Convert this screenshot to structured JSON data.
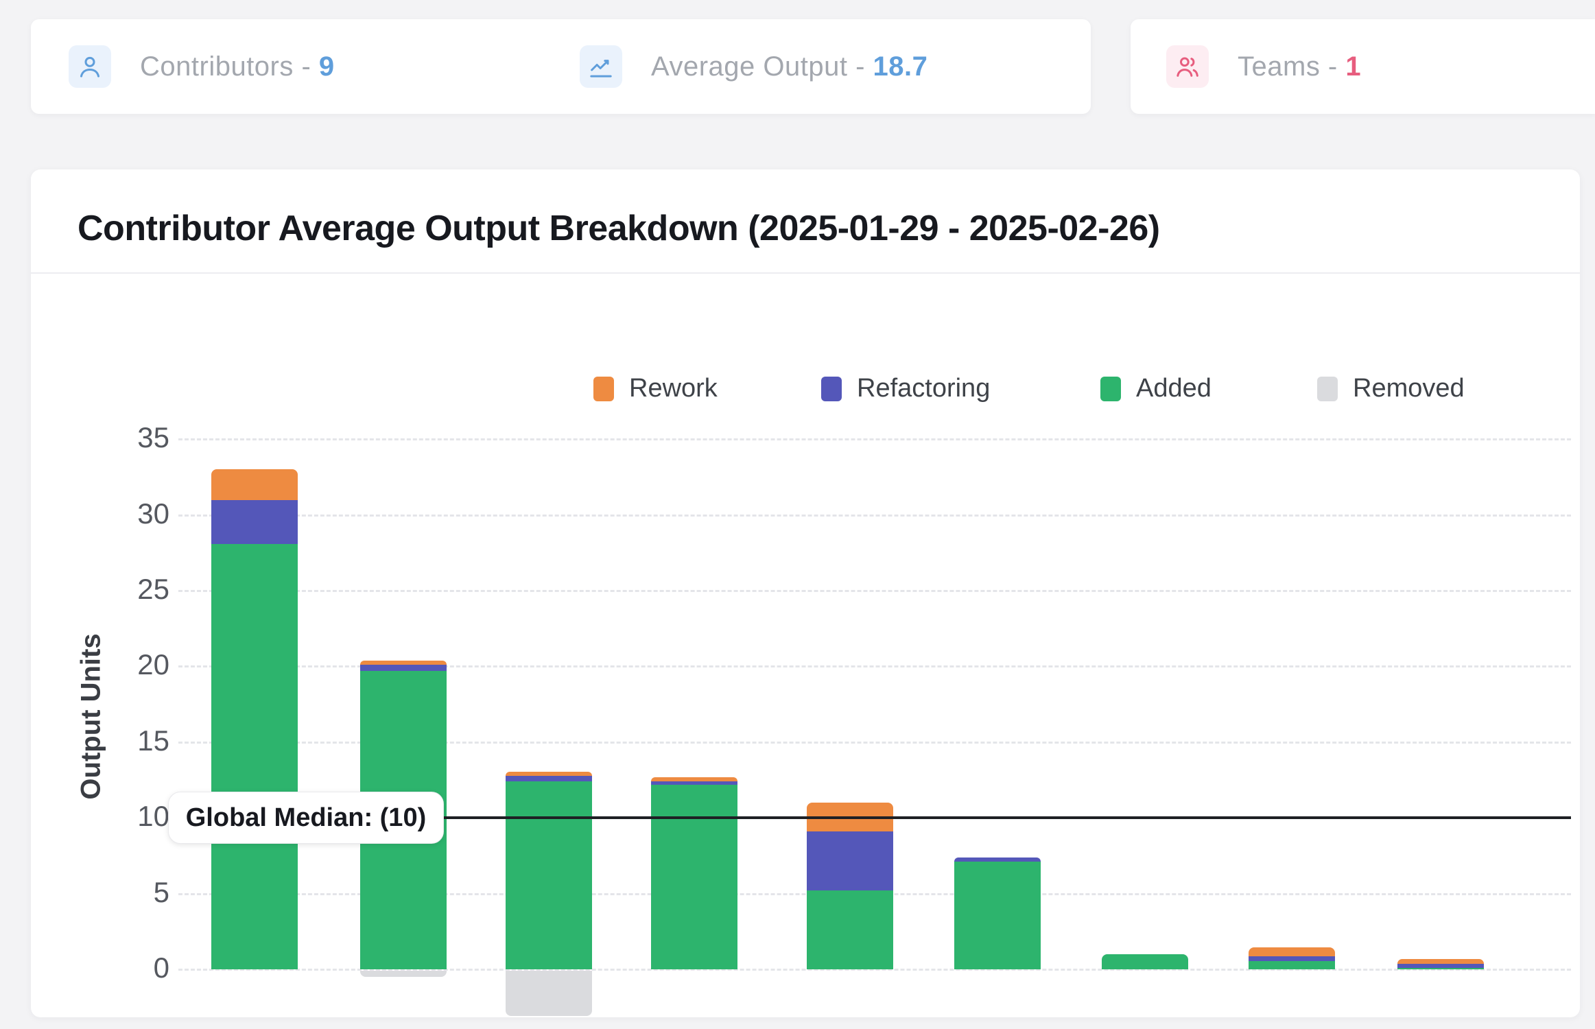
{
  "stats": [
    {
      "label": "Contributors",
      "sep": " - ",
      "value": "9",
      "icon": "user-icon",
      "accent": "#5f9edb",
      "icon_bg": "#eaf2fc"
    },
    {
      "label": "Average Output",
      "sep": " - ",
      "value": "18.7",
      "icon": "line-chart-icon",
      "accent": "#5f9edb",
      "icon_bg": "#eaf2fc"
    },
    {
      "label": "Teams",
      "sep": " - ",
      "value": "1",
      "icon": "team-icon",
      "accent": "#e75d7e",
      "icon_bg": "#fdedf2"
    }
  ],
  "chart_card": {
    "title": "Contributor Average Output Breakdown (2025-01-29 - 2025-02-26)"
  },
  "chart_data": {
    "type": "bar",
    "stacked": true,
    "title": "Contributor Average Output Breakdown (2025-01-29 - 2025-02-26)",
    "xlabel": "",
    "ylabel": "Output Units",
    "x_tick_labels_visible": false,
    "categories": [
      1,
      2,
      3,
      4,
      5,
      6,
      7,
      8,
      9
    ],
    "yticks": [
      0,
      5,
      10,
      15,
      20,
      25,
      30,
      35
    ],
    "ylim_visible": [
      -3.5,
      36.5
    ],
    "grid": "dashed-horizontal",
    "legend_position": "top-right",
    "legend_order": [
      "Rework",
      "Refactoring",
      "Added",
      "Removed"
    ],
    "series": [
      {
        "name": "Added",
        "color": "#2db46d",
        "values": [
          28.1,
          19.7,
          12.4,
          12.2,
          5.2,
          7.1,
          1.0,
          0.55,
          0.1
        ]
      },
      {
        "name": "Refactoring",
        "color": "#5457b9",
        "values": [
          2.9,
          0.4,
          0.35,
          0.2,
          3.9,
          0.3,
          0,
          0.3,
          0.25
        ]
      },
      {
        "name": "Rework",
        "color": "#ee8b41",
        "values": [
          2.0,
          0.3,
          0.3,
          0.3,
          1.9,
          0,
          0,
          0.6,
          0.35
        ]
      },
      {
        "name": "Removed",
        "color": "#dadbde",
        "values": [
          0,
          -0.4,
          -3.0,
          0,
          0,
          0,
          0,
          0,
          0
        ]
      }
    ],
    "annotations": {
      "median_label": "Global Median: (10)",
      "median_value": 10
    }
  }
}
